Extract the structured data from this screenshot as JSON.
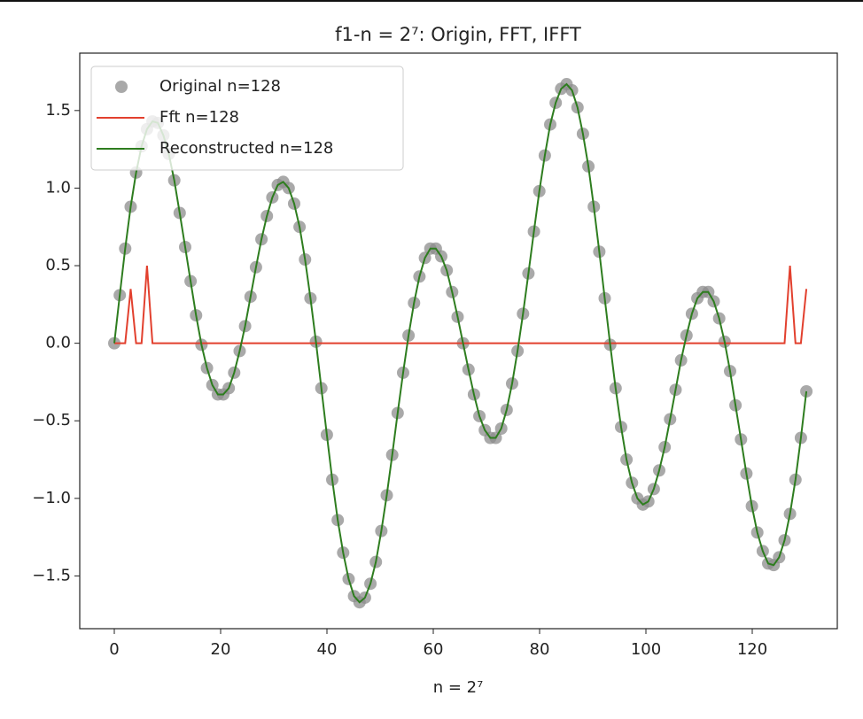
{
  "chart_data": {
    "type": "line",
    "title": "f1-n = 2⁷: Origin, FFT, IFFT",
    "x_label": "n = 2⁷",
    "x": [
      0,
      1.03,
      2.05,
      3.08,
      4.1,
      5.13,
      6.15,
      7.18,
      8.2,
      9.23,
      10.25,
      11.28,
      12.3,
      13.33,
      14.35,
      15.38,
      16.4,
      17.43,
      18.45,
      19.48,
      20.5,
      21.53,
      22.55,
      23.58,
      24.6,
      25.63,
      26.65,
      27.68,
      28.7,
      29.73,
      30.75,
      31.78,
      32.8,
      33.83,
      34.85,
      35.88,
      36.9,
      37.93,
      38.95,
      39.98,
      41,
      42.03,
      43.05,
      44.08,
      45.1,
      46.13,
      47.15,
      48.18,
      49.2,
      50.23,
      51.25,
      52.28,
      53.3,
      54.33,
      55.35,
      56.38,
      57.4,
      58.43,
      59.45,
      60.48,
      61.5,
      62.53,
      63.55,
      64.58,
      65.6,
      66.63,
      67.65,
      68.68,
      69.7,
      70.73,
      71.75,
      72.78,
      73.8,
      74.83,
      75.85,
      76.88,
      77.9,
      78.93,
      79.95,
      80.98,
      82,
      83.03,
      84.05,
      85.08,
      86.1,
      87.13,
      88.15,
      89.18,
      90.2,
      91.23,
      92.25,
      93.28,
      94.3,
      95.33,
      96.35,
      97.38,
      98.4,
      99.43,
      100.45,
      101.48,
      102.5,
      103.53,
      104.55,
      105.58,
      106.6,
      107.63,
      108.65,
      109.68,
      110.7,
      111.73,
      112.75,
      113.78,
      114.8,
      115.83,
      116.85,
      117.88,
      118.9,
      119.93,
      120.95,
      121.98,
      123,
      124.03,
      125.05,
      126.08,
      127.1,
      128.13,
      129.15,
      130.18
    ],
    "series": [
      {
        "name": "Original n=128",
        "type": "scatter",
        "color": "#8c8c8c",
        "values": [
          0,
          0.31,
          0.61,
          0.88,
          1.1,
          1.27,
          1.38,
          1.43,
          1.42,
          1.34,
          1.22,
          1.05,
          0.84,
          0.62,
          0.4,
          0.18,
          -0.01,
          -0.16,
          -0.27,
          -0.33,
          -0.33,
          -0.29,
          -0.19,
          -0.05,
          0.11,
          0.3,
          0.49,
          0.67,
          0.82,
          0.94,
          1.02,
          1.04,
          1,
          0.9,
          0.75,
          0.54,
          0.29,
          0.01,
          -0.29,
          -0.59,
          -0.88,
          -1.14,
          -1.35,
          -1.52,
          -1.63,
          -1.67,
          -1.64,
          -1.55,
          -1.41,
          -1.21,
          -0.98,
          -0.72,
          -0.45,
          -0.19,
          0.05,
          0.26,
          0.43,
          0.55,
          0.61,
          0.61,
          0.56,
          0.47,
          0.33,
          0.17,
          0,
          -0.17,
          -0.33,
          -0.47,
          -0.56,
          -0.61,
          -0.61,
          -0.55,
          -0.43,
          -0.26,
          -0.05,
          0.19,
          0.45,
          0.72,
          0.98,
          1.21,
          1.41,
          1.55,
          1.64,
          1.67,
          1.63,
          1.52,
          1.35,
          1.14,
          0.88,
          0.59,
          0.29,
          -0.01,
          -0.29,
          -0.54,
          -0.75,
          -0.9,
          -1,
          -1.04,
          -1.02,
          -0.94,
          -0.82,
          -0.67,
          -0.49,
          -0.3,
          -0.11,
          0.05,
          0.19,
          0.29,
          0.33,
          0.33,
          0.27,
          0.16,
          0.01,
          -0.18,
          -0.4,
          -0.62,
          -0.84,
          -1.05,
          -1.22,
          -1.34,
          -1.42,
          -1.43,
          -1.38,
          -1.27,
          -1.1,
          -0.88,
          -0.61,
          -0.31
        ]
      },
      {
        "name": "Fft n=128",
        "type": "line",
        "color": "#e2402e",
        "values": [
          0,
          0,
          0,
          0.35,
          0,
          0,
          0.5,
          0,
          0,
          0,
          0,
          0,
          0,
          0,
          0,
          0,
          0,
          0,
          0,
          0,
          0,
          0,
          0,
          0,
          0,
          0,
          0,
          0,
          0,
          0,
          0,
          0,
          0,
          0,
          0,
          0,
          0,
          0,
          0,
          0,
          0,
          0,
          0,
          0,
          0,
          0,
          0,
          0,
          0,
          0,
          0,
          0,
          0,
          0,
          0,
          0,
          0,
          0,
          0,
          0,
          0,
          0,
          0,
          0,
          0,
          0,
          0,
          0,
          0,
          0,
          0,
          0,
          0,
          0,
          0,
          0,
          0,
          0,
          0,
          0,
          0,
          0,
          0,
          0,
          0,
          0,
          0,
          0,
          0,
          0,
          0,
          0,
          0,
          0,
          0,
          0,
          0,
          0,
          0,
          0,
          0,
          0,
          0,
          0,
          0,
          0,
          0,
          0,
          0,
          0,
          0,
          0,
          0,
          0,
          0,
          0,
          0,
          0,
          0,
          0,
          0,
          0,
          0,
          0,
          0.5,
          0,
          0,
          0.35
        ]
      },
      {
        "name": "Reconstructed n=128",
        "type": "line",
        "color": "#2e7d1f",
        "values": [
          0,
          0.31,
          0.61,
          0.88,
          1.1,
          1.27,
          1.38,
          1.43,
          1.42,
          1.34,
          1.22,
          1.05,
          0.84,
          0.62,
          0.4,
          0.18,
          -0.01,
          -0.16,
          -0.27,
          -0.33,
          -0.33,
          -0.29,
          -0.19,
          -0.05,
          0.11,
          0.3,
          0.49,
          0.67,
          0.82,
          0.94,
          1.02,
          1.04,
          1,
          0.9,
          0.75,
          0.54,
          0.29,
          0.01,
          -0.29,
          -0.59,
          -0.88,
          -1.14,
          -1.35,
          -1.52,
          -1.63,
          -1.67,
          -1.64,
          -1.55,
          -1.41,
          -1.21,
          -0.98,
          -0.72,
          -0.45,
          -0.19,
          0.05,
          0.26,
          0.43,
          0.55,
          0.61,
          0.61,
          0.56,
          0.47,
          0.33,
          0.17,
          0,
          -0.17,
          -0.33,
          -0.47,
          -0.56,
          -0.61,
          -0.61,
          -0.55,
          -0.43,
          -0.26,
          -0.05,
          0.19,
          0.45,
          0.72,
          0.98,
          1.21,
          1.41,
          1.55,
          1.64,
          1.67,
          1.63,
          1.52,
          1.35,
          1.14,
          0.88,
          0.59,
          0.29,
          -0.01,
          -0.29,
          -0.54,
          -0.75,
          -0.9,
          -1,
          -1.04,
          -1.02,
          -0.94,
          -0.82,
          -0.67,
          -0.49,
          -0.3,
          -0.11,
          0.05,
          0.19,
          0.29,
          0.33,
          0.33,
          0.27,
          0.16,
          0.01,
          -0.18,
          -0.4,
          -0.62,
          -0.84,
          -1.05,
          -1.22,
          -1.34,
          -1.42,
          -1.43,
          -1.38,
          -1.27,
          -1.1,
          -0.88,
          -0.61,
          -0.31
        ]
      }
    ],
    "xlim": [
      -6.5,
      136
    ],
    "ylim": [
      -1.84,
      1.87
    ],
    "xticks": [
      0,
      20,
      40,
      60,
      80,
      100,
      120
    ],
    "yticks": [
      {
        "value": -1.5,
        "label": "−1.5"
      },
      {
        "value": -1,
        "label": "−1.0"
      },
      {
        "value": -0.5,
        "label": "−0.5"
      },
      {
        "value": 0,
        "label": "0.0"
      },
      {
        "value": 0.5,
        "label": "0.5"
      },
      {
        "value": 1,
        "label": "1.0"
      },
      {
        "value": 1.5,
        "label": "1.5"
      }
    ],
    "legend": "upper left"
  }
}
